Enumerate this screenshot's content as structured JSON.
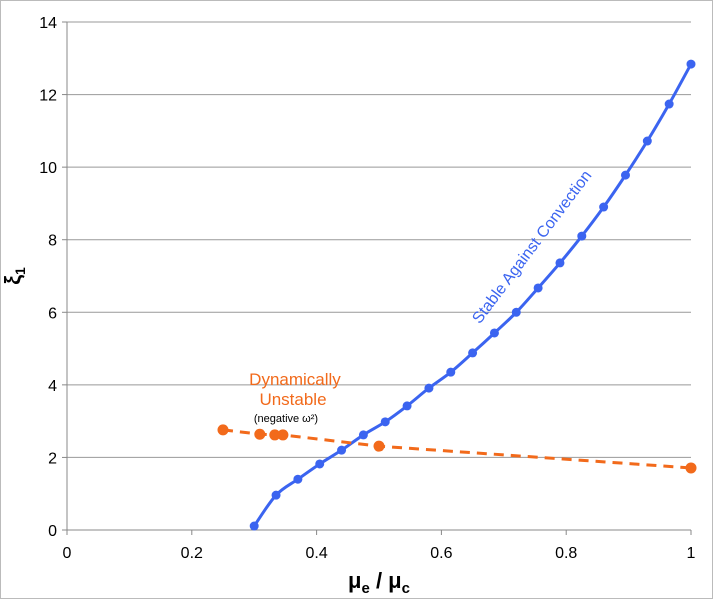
{
  "chart_data": {
    "type": "line",
    "xlabel": "μe / μc",
    "xlabel_main": "μ",
    "xlabel_sub1": "e",
    "xlabel_sep": " / μ",
    "xlabel_sub2": "c",
    "ylabel": "ξ1",
    "ylabel_main": "ξ",
    "ylabel_sub": "1",
    "xlim": [
      0,
      1
    ],
    "ylim": [
      0,
      14
    ],
    "xticks": [
      "0",
      "0.2",
      "0.4",
      "0.6",
      "0.8",
      "1"
    ],
    "xtick_values": [
      0,
      0.2,
      0.4,
      0.6,
      0.8,
      1
    ],
    "yticks": [
      "0",
      "2",
      "4",
      "6",
      "8",
      "10",
      "12",
      "14"
    ],
    "ytick_values": [
      0,
      2,
      4,
      6,
      8,
      10,
      12,
      14
    ],
    "grid": "horizontal",
    "series": [
      {
        "color": "#3b64f0",
        "style": "solid-smooth",
        "x": [
          0.3,
          0.335,
          0.37,
          0.405,
          0.44,
          0.475,
          0.51,
          0.545,
          0.58,
          0.615,
          0.65,
          0.685,
          0.72,
          0.755,
          0.79,
          0.825,
          0.86,
          0.895,
          0.93,
          0.965,
          1.0
        ],
        "y": [
          0.11,
          0.96,
          1.4,
          1.82,
          2.2,
          2.62,
          2.98,
          3.42,
          3.91,
          4.35,
          4.88,
          5.43,
          6.0,
          6.67,
          7.36,
          8.1,
          8.9,
          9.78,
          10.72,
          11.74,
          12.84
        ]
      },
      {
        "color": "#f26a1b",
        "style": "dashed",
        "x": [
          0.25,
          0.309,
          0.333,
          0.346,
          0.5,
          1.0
        ],
        "y": [
          2.76,
          2.64,
          2.62,
          2.62,
          2.31,
          1.71
        ]
      }
    ],
    "annotations": {
      "stable": "Stable Against Convection",
      "unstable_line1": "Dynamically",
      "unstable_line2": "Unstable",
      "unstable_note": "(negative ω²)"
    }
  }
}
